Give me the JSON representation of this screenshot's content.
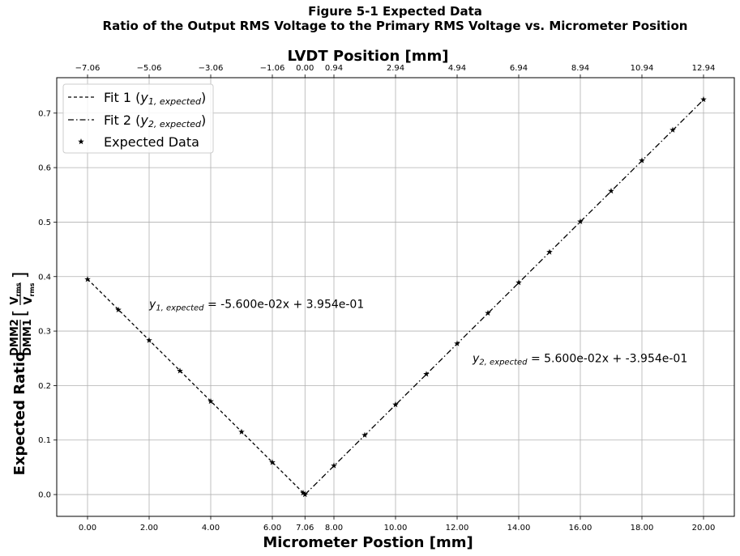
{
  "chart_data": {
    "type": "line",
    "title_line1": "Figure 5-1 Expected Data",
    "title_line2": "Ratio of the Output RMS Voltage to the Primary RMS Voltage vs. Micrometer Position",
    "top_axis_label": "LVDT Position [mm]",
    "xlabel": "Micrometer Postion [mm]",
    "ylabel": {
      "prefix": "Expected Ratio",
      "frac_num": "DMM2",
      "frac_den": "DMM1",
      "bracket_num": "V",
      "bracket_num_sub": "rms",
      "bracket_den": "V",
      "bracket_den_sub": "rms"
    },
    "xlim": [
      -1,
      21
    ],
    "ylim": [
      -0.04,
      0.765
    ],
    "x_ticks": [
      {
        "value": 0,
        "label": "0.00"
      },
      {
        "value": 2,
        "label": "2.00"
      },
      {
        "value": 4,
        "label": "4.00"
      },
      {
        "value": 6,
        "label": "6.00"
      },
      {
        "value": 7.06,
        "label": "7.06"
      },
      {
        "value": 8,
        "label": "8.00"
      },
      {
        "value": 10,
        "label": "10.00"
      },
      {
        "value": 12,
        "label": "12.00"
      },
      {
        "value": 14,
        "label": "14.00"
      },
      {
        "value": 16,
        "label": "16.00"
      },
      {
        "value": 18,
        "label": "18.00"
      },
      {
        "value": 20,
        "label": "20.00"
      }
    ],
    "top_ticks": [
      {
        "value": 0,
        "label": "−7.06"
      },
      {
        "value": 2,
        "label": "−5.06"
      },
      {
        "value": 4,
        "label": "−3.06"
      },
      {
        "value": 6,
        "label": "−1.06"
      },
      {
        "value": 7.06,
        "label": "0.00"
      },
      {
        "value": 8,
        "label": "0.94"
      },
      {
        "value": 10,
        "label": "2.94"
      },
      {
        "value": 12,
        "label": "4.94"
      },
      {
        "value": 14,
        "label": "6.94"
      },
      {
        "value": 16,
        "label": "8.94"
      },
      {
        "value": 18,
        "label": "10.94"
      },
      {
        "value": 20,
        "label": "12.94"
      }
    ],
    "y_ticks": [
      {
        "value": 0.0,
        "label": "0.0"
      },
      {
        "value": 0.1,
        "label": "0.1"
      },
      {
        "value": 0.2,
        "label": "0.2"
      },
      {
        "value": 0.3,
        "label": "0.3"
      },
      {
        "value": 0.4,
        "label": "0.4"
      },
      {
        "value": 0.5,
        "label": "0.5"
      },
      {
        "value": 0.6,
        "label": "0.6"
      },
      {
        "value": 0.7,
        "label": "0.7"
      }
    ],
    "grid": true,
    "legend_position": "top-left",
    "series": [
      {
        "kind": "line",
        "dash": "dashed",
        "color": "#000000",
        "legend": {
          "main": "Fit 1 (",
          "italic": "y",
          "sub": "1, expected",
          "close": ")"
        },
        "x": [
          0,
          7.06
        ],
        "y": [
          0.3954,
          0.0
        ]
      },
      {
        "kind": "line",
        "dash": "dashdot",
        "color": "#000000",
        "legend": {
          "main": "Fit 2 (",
          "italic": "y",
          "sub": "2, expected",
          "close": ")"
        },
        "x": [
          7.06,
          20
        ],
        "y": [
          0.0,
          0.7246
        ]
      },
      {
        "kind": "scatter",
        "marker": "star",
        "color": "#000000",
        "legend": {
          "main": "Expected Data",
          "italic": "",
          "sub": "",
          "close": ""
        },
        "x": [
          0,
          1,
          2,
          3,
          4,
          5,
          6,
          7,
          7.06,
          8,
          9,
          10,
          11,
          12,
          13,
          14,
          15,
          16,
          17,
          18,
          19,
          20
        ],
        "y": [
          0.395,
          0.339,
          0.283,
          0.227,
          0.171,
          0.115,
          0.059,
          0.003,
          0.0,
          0.053,
          0.109,
          0.165,
          0.221,
          0.277,
          0.333,
          0.389,
          0.445,
          0.501,
          0.557,
          0.613,
          0.669,
          0.725
        ]
      }
    ],
    "annotations": [
      {
        "x": 2.0,
        "y": 0.35,
        "italic": "y",
        "sub": "1, expected",
        "text": " = -5.600e-02x + 3.954e-01"
      },
      {
        "x": 12.5,
        "y": 0.25,
        "italic": "y",
        "sub": "2, expected",
        "text": " = 5.600e-02x + -3.954e-01"
      }
    ]
  }
}
